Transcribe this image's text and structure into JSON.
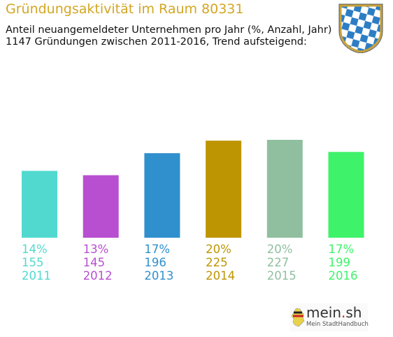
{
  "header": {
    "title": "Gründungsaktivität im Raum 80331",
    "subtitle_line1": "Anteil neuangemeldeter Unternehmen pro Jahr (%, Anzahl, Jahr)",
    "subtitle_line2": "1147 Gründungen zwischen 2011-2016, Trend aufsteigend:"
  },
  "crest": {
    "icon": "bavarian-crest-icon",
    "colors": [
      "#2c7dc4",
      "#ffffff",
      "#c8a23a"
    ]
  },
  "chart_data": {
    "type": "bar",
    "categories": [
      "2011",
      "2012",
      "2013",
      "2014",
      "2015",
      "2016"
    ],
    "values": [
      155,
      145,
      196,
      225,
      227,
      199
    ],
    "percent_labels": [
      "14%",
      "13%",
      "17%",
      "20%",
      "20%",
      "17%"
    ],
    "count_labels": [
      "155",
      "145",
      "196",
      "225",
      "227",
      "199"
    ],
    "colors": [
      "#52d9cf",
      "#b84fd1",
      "#3090cd",
      "#bd9503",
      "#8fbf9f",
      "#3ef26a"
    ],
    "ylim": [
      0,
      250
    ],
    "grid": false,
    "legend": "none"
  },
  "logo": {
    "text_main": "mein",
    "text_dot": ".",
    "text_suffix": "sh",
    "tagline": "Mein StadtHandbuch",
    "icon": "germany-map-icon"
  }
}
